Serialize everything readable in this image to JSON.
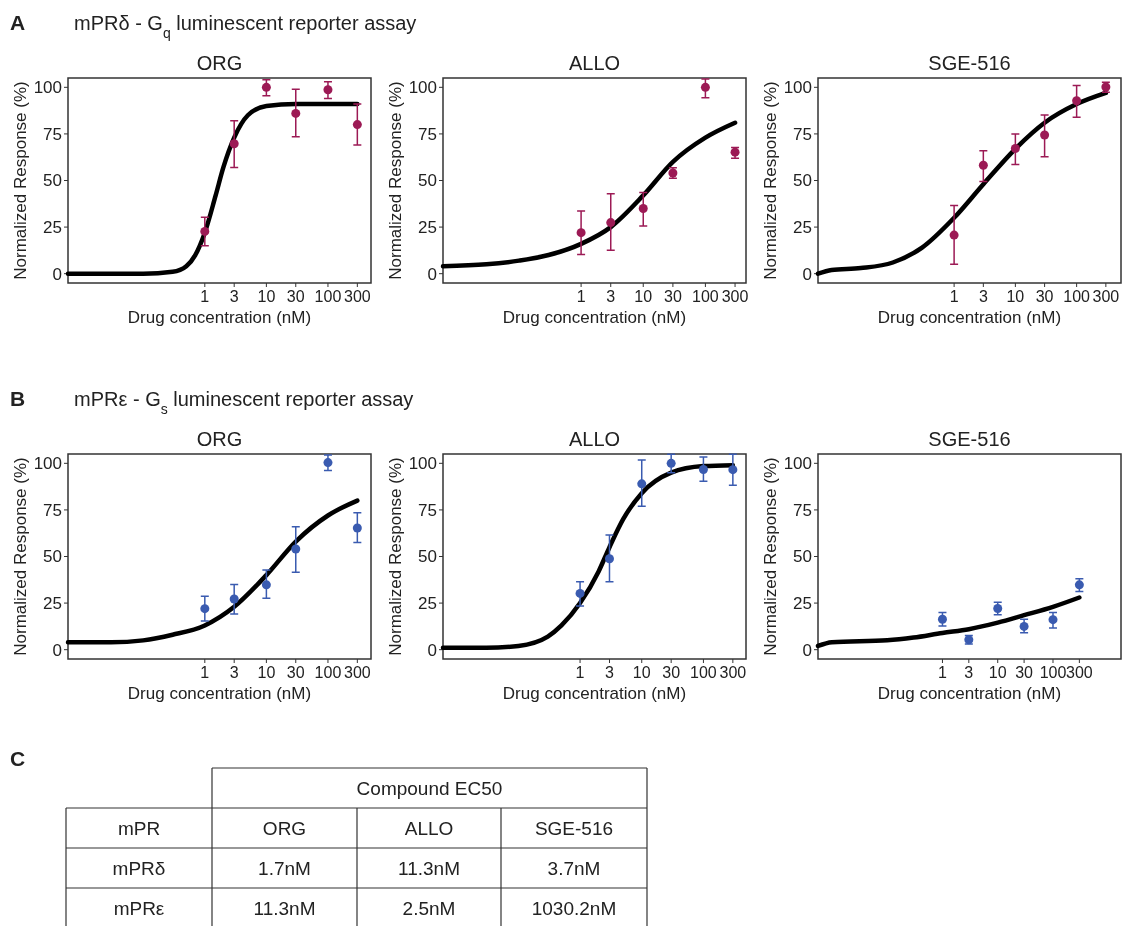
{
  "chart_data": [
    {
      "type": "scatter",
      "title": "ORG",
      "xlabel": "Drug concentration (nM)",
      "ylabel": "Normalized Response (%)",
      "log": "x",
      "xlim": [
        0.006,
        500
      ],
      "ylim": [
        -5,
        105
      ],
      "xticks": [
        1,
        3,
        10,
        30,
        100,
        300
      ],
      "yticks": [
        0,
        25,
        50,
        75,
        100
      ],
      "annotations": [
        "A",
        "mPRδ - G$_{q}$ luminescent reporter assay"
      ],
      "series": [
        {
          "type": "scatter",
          "marker": "circle",
          "color": "#9c1a55",
          "x": [
            1,
            3,
            10,
            30,
            100,
            300
          ],
          "values": [
            22.7,
            69.7,
            100,
            86,
            98.7,
            80
          ],
          "errors": [
            [
              15,
              30.3
            ],
            [
              57,
              82
            ],
            [
              95.5,
              104
            ],
            [
              73.5,
              99
            ],
            [
              94,
              103
            ],
            [
              69,
              91
            ]
          ]
        },
        {
          "type": "line",
          "color": "#000000",
          "x": [
            0.006,
            0.1,
            0.3,
            0.5,
            0.7,
            1,
            1.5,
            2,
            3,
            5,
            10,
            30,
            100,
            300
          ],
          "values": [
            0,
            0,
            1,
            4,
            10,
            22,
            42,
            57,
            73,
            85,
            90,
            91,
            91,
            91
          ]
        }
      ]
    },
    {
      "type": "scatter",
      "title": "ALLO",
      "xlabel": "Drug concentration (nM)",
      "ylabel": "Normalized Response (%)",
      "log": "x",
      "xlim": [
        0.006,
        450
      ],
      "ylim": [
        -5,
        105
      ],
      "xticks": [
        1,
        3,
        10,
        30,
        100,
        300
      ],
      "yticks": [
        0,
        25,
        50,
        75,
        100
      ],
      "series": [
        {
          "type": "scatter",
          "marker": "circle",
          "color": "#9c1a55",
          "x": [
            1,
            3,
            10,
            30,
            100,
            300
          ],
          "values": [
            22,
            27.4,
            35,
            54,
            100,
            65.2
          ],
          "errors": [
            [
              10.3,
              33.7
            ],
            [
              12.6,
              42.9
            ],
            [
              25.6,
              43.6
            ],
            [
              51.2,
              56.8
            ],
            [
              94.4,
              104.5
            ],
            [
              62,
              67.7
            ]
          ]
        },
        {
          "type": "line",
          "color": "#000000",
          "x": [
            0.006,
            0.03,
            0.1,
            0.3,
            1,
            3,
            10,
            30,
            100,
            300
          ],
          "values": [
            4,
            5,
            7,
            10,
            16,
            25,
            42,
            60,
            73,
            81
          ]
        }
      ]
    },
    {
      "type": "scatter",
      "title": "SGE-516",
      "xlabel": "Drug concentration (nM)",
      "ylabel": "Normalized Response (%)",
      "log": "x",
      "xlim": [
        0.006,
        530
      ],
      "ylim": [
        -5,
        105
      ],
      "xticks": [
        1,
        3,
        10,
        30,
        100,
        300
      ],
      "yticks": [
        0,
        25,
        50,
        75,
        100
      ],
      "series": [
        {
          "type": "scatter",
          "marker": "circle",
          "color": "#9c1a55",
          "x": [
            1,
            3,
            10,
            30,
            100,
            300
          ],
          "values": [
            20.7,
            58.2,
            67.2,
            74.4,
            92.8,
            100.2
          ],
          "errors": [
            [
              5,
              36.6
            ],
            [
              49.5,
              66
            ],
            [
              58.6,
              75
            ],
            [
              62.7,
              85.2
            ],
            [
              84,
              101
            ],
            [
              97.3,
              102.7
            ]
          ]
        },
        {
          "type": "line",
          "color": "#000000",
          "x": [
            0.006,
            0.01,
            0.03,
            0.1,
            0.3,
            1,
            3,
            10,
            30,
            100,
            300
          ],
          "values": [
            0,
            2,
            3,
            6,
            14,
            30,
            48,
            67,
            81,
            91,
            97
          ]
        }
      ]
    },
    {
      "type": "scatter",
      "title": "ORG",
      "xlabel": "Drug concentration (nM)",
      "ylabel": "Normalized Response (%)",
      "log": "x",
      "xlim": [
        0.006,
        500
      ],
      "ylim": [
        -5,
        105
      ],
      "xticks": [
        1,
        3,
        10,
        30,
        100,
        300
      ],
      "yticks": [
        0,
        25,
        50,
        75,
        100
      ],
      "annotations": [
        "B",
        "mPRε - G$_{s}$ luminescent reporter assay"
      ],
      "series": [
        {
          "type": "scatter",
          "marker": "circle",
          "color": "#3a5bb0",
          "x": [
            1,
            3,
            10,
            30,
            100,
            300
          ],
          "values": [
            22,
            27.2,
            34.8,
            54,
            100.4,
            65.3
          ],
          "errors": [
            [
              15.4,
              28.7
            ],
            [
              19.2,
              35
            ],
            [
              27.6,
              42.8
            ],
            [
              41.6,
              65.9
            ],
            [
              96.2,
              104.4
            ],
            [
              57.5,
              73.5
            ]
          ]
        },
        {
          "type": "line",
          "color": "#000000",
          "x": [
            0.006,
            0.03,
            0.1,
            0.3,
            1,
            3,
            10,
            30,
            100,
            300
          ],
          "values": [
            4,
            4,
            5,
            8,
            13,
            23,
            40,
            58,
            72,
            80
          ]
        }
      ]
    },
    {
      "type": "scatter",
      "title": "ALLO",
      "xlabel": "Drug concentration (nM)",
      "ylabel": "Normalized Response (%)",
      "log": "x",
      "xlim": [
        0.006,
        490
      ],
      "ylim": [
        -5,
        105
      ],
      "xticks": [
        1,
        3,
        10,
        30,
        100,
        300
      ],
      "yticks": [
        0,
        25,
        50,
        75,
        100
      ],
      "series": [
        {
          "type": "scatter",
          "marker": "circle",
          "color": "#3a5bb0",
          "x": [
            1,
            3,
            10,
            30,
            100,
            300
          ],
          "values": [
            30.2,
            48.8,
            89,
            100,
            96.7,
            96.6
          ],
          "errors": [
            [
              23.5,
              36.5
            ],
            [
              36.5,
              61.5
            ],
            [
              76.9,
              101.8
            ],
            [
              95,
              104.9
            ],
            [
              90.4,
              103.4
            ],
            [
              88.2,
              104.9
            ]
          ]
        },
        {
          "type": "line",
          "color": "#000000",
          "x": [
            0.006,
            0.03,
            0.1,
            0.3,
            0.5,
            1,
            2,
            3,
            5,
            10,
            30,
            100,
            300
          ],
          "values": [
            1,
            1,
            2,
            7,
            13,
            25,
            42,
            55,
            70,
            84,
            95,
            98.5,
            99
          ]
        }
      ]
    },
    {
      "type": "scatter",
      "title": "SGE-516",
      "xlabel": "Drug concentration (nM)",
      "ylabel": "Normalized Response (%)",
      "log": "x",
      "xlim": [
        0.0056,
        1700
      ],
      "ylim": [
        -5,
        105
      ],
      "xticks": [
        1,
        3,
        10,
        30,
        100,
        300
      ],
      "yticks": [
        0,
        25,
        50,
        75,
        100
      ],
      "series": [
        {
          "type": "scatter",
          "marker": "circle",
          "color": "#3a5bb0",
          "x": [
            1,
            3,
            10,
            30,
            100,
            300
          ],
          "values": [
            16.3,
            5.3,
            22.1,
            12.5,
            16.1,
            34.8
          ],
          "errors": [
            [
              12.7,
              19.9
            ],
            [
              3.1,
              7.6
            ],
            [
              18.8,
              25.4
            ],
            [
              9.1,
              16.3
            ],
            [
              11.6,
              19.9
            ],
            [
              31.2,
              38
            ]
          ]
        },
        {
          "type": "line",
          "color": "#000000",
          "x": [
            0.0056,
            0.01,
            0.1,
            0.3,
            1,
            3,
            10,
            30,
            100,
            300
          ],
          "values": [
            2,
            4,
            5,
            6.5,
            9,
            11,
            14.5,
            18.5,
            23,
            28
          ]
        }
      ]
    },
    {
      "type": "other",
      "title": "Compound EC50",
      "categories": [
        "ORG",
        "ALLO",
        "SGE-516"
      ],
      "y_categories": [
        "mPRδ",
        "mPRε"
      ],
      "cell_labels": [
        [
          "1.7nM",
          "11.3nM",
          "3.7nM"
        ],
        [
          "11.3nM",
          "2.5nM",
          "1030.2nM"
        ]
      ],
      "annotations": [
        "C",
        "mPR"
      ]
    }
  ]
}
